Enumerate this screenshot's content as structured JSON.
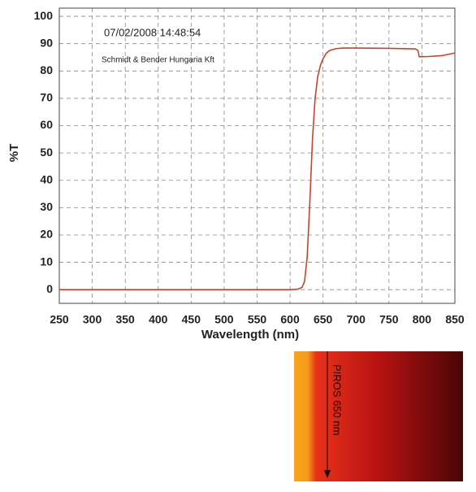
{
  "chart_data": {
    "type": "line",
    "annotations": [
      "07/02/2008 14:48:54",
      "Schmidt & Bender Hungaria Kft"
    ],
    "xlabel": "Wavelength (nm)",
    "ylabel": "%T",
    "x": [
      250,
      400,
      600,
      612,
      618,
      622,
      626,
      630,
      634,
      638,
      642,
      646,
      650,
      655,
      660,
      670,
      680,
      700,
      750,
      790,
      794,
      796,
      810,
      830,
      850
    ],
    "values": [
      0,
      0,
      0,
      0.2,
      0.8,
      3,
      12,
      32,
      55,
      70,
      78,
      82,
      84.5,
      86.5,
      87.5,
      88.2,
      88.4,
      88.4,
      88.3,
      88.1,
      87.5,
      85.2,
      85.3,
      85.6,
      86.6
    ],
    "color": "#c8432c",
    "xlim": [
      250,
      850
    ],
    "ylim": [
      -5,
      103
    ],
    "xticks": [
      250,
      300,
      350,
      400,
      450,
      500,
      550,
      600,
      650,
      700,
      750,
      800,
      850
    ],
    "yticks": [
      0,
      10,
      20,
      30,
      40,
      50,
      60,
      70,
      80,
      90,
      100
    ],
    "grid": true
  },
  "swatch": {
    "label": "PIROS 650 nm"
  }
}
